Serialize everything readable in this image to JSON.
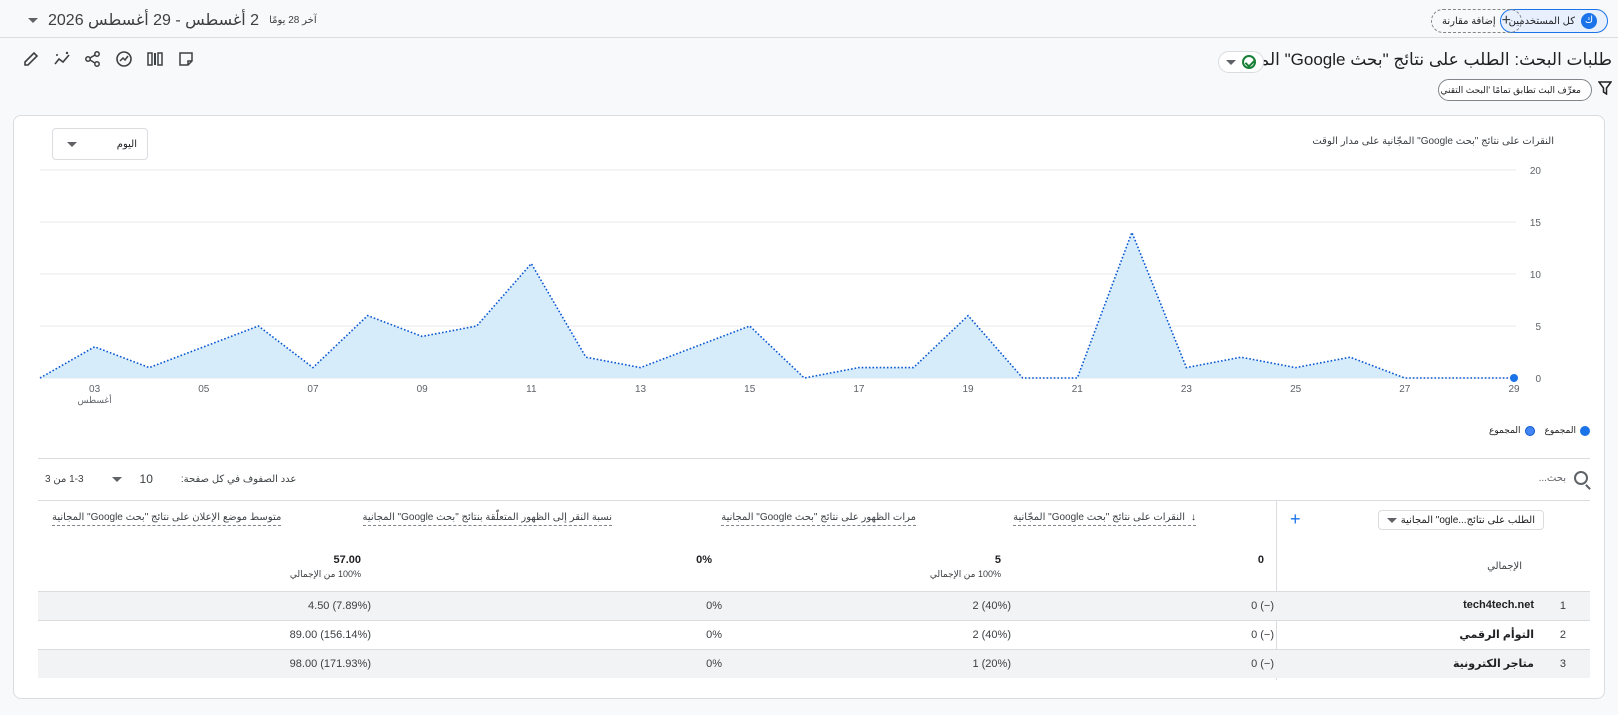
{
  "top": {
    "all_users": "كل المستخدمين",
    "avatar_letter": "ك",
    "add_comparison": "إضافة مقارنة",
    "date_range": "2 أغسطس - 29 أغسطس 2026",
    "date_sub": "آخر 28 يومًا"
  },
  "report": {
    "title": "طلبات البحث: الطلب على نتائج \"بحث Google\" المجانية",
    "filter_chip": "معرِّف البث تطابق تمامًا 'البحث التقني ال...'"
  },
  "chart_section": {
    "title": "النقرات على نتائج \"بحث Google\" المجّانية على مدار الوقت",
    "period": "اليوم"
  },
  "chart_data": {
    "type": "area",
    "y_ticks": [
      "0",
      "5",
      "10",
      "15",
      "20"
    ],
    "ylim": [
      0,
      20
    ],
    "x_tick_labels": [
      "03",
      "05",
      "07",
      "09",
      "11",
      "13",
      "15",
      "17",
      "19",
      "21",
      "23",
      "25",
      "27",
      "29"
    ],
    "x_sub_label": "أغسطس",
    "x_days": [
      2,
      3,
      4,
      5,
      6,
      7,
      8,
      9,
      10,
      11,
      12,
      13,
      14,
      15,
      16,
      17,
      18,
      19,
      20,
      21,
      22,
      23,
      24,
      25,
      26,
      27,
      28,
      29
    ],
    "series": [
      {
        "name": "المجموع",
        "values": [
          0,
          3,
          1,
          3,
          5,
          1,
          6,
          4,
          5,
          11,
          2,
          1,
          3,
          5,
          0,
          1,
          1,
          6,
          0,
          0,
          14,
          1,
          2,
          1,
          2,
          0,
          0,
          0
        ]
      }
    ],
    "grid": true
  },
  "legend": [
    "المجموع",
    "المجموع"
  ],
  "table": {
    "search_placeholder": "بحث...",
    "rows_per_page_label": "عدد الصفوف في كل صفحة:",
    "rows_per_page": "10",
    "range": "1-3 من 3",
    "dimension": "الطلب على نتائج...ogle\" المجانية",
    "headers": [
      "النقرات على نتائج \"بحث Google\" المجّانية",
      "مرات الظهور على نتائج \"بحث Google\" المجانية",
      "نسبة النقر إلى الظهور المتعلّقة بنتائج \"بحث Google\" المجانية",
      "متوسط موضع الإعلان على نتائج \"بحث Google\" المجانية"
    ],
    "total_label": "الإجمالي",
    "totals": [
      {
        "value": "0",
        "pct": ""
      },
      {
        "value": "5",
        "pct": "100% من الإجمالي"
      },
      {
        "value": "0%",
        "pct": ""
      },
      {
        "value": "57.00",
        "pct": "100% من الإجمالي"
      }
    ],
    "rows": [
      {
        "idx": "1",
        "name": "tech4tech.net",
        "clicks": "0 (−)",
        "impr": "2 (40%)",
        "ctr": "0%",
        "pos": "4.50 (7.89%)"
      },
      {
        "idx": "2",
        "name": "التوأم الرقمي",
        "clicks": "0 (−)",
        "impr": "2 (40%)",
        "ctr": "0%",
        "pos": "89.00 (156.14%)"
      },
      {
        "idx": "3",
        "name": "متاجر الكترونية",
        "clicks": "0 (−)",
        "impr": "1 (20%)",
        "ctr": "0%",
        "pos": "98.00 (171.93%)"
      }
    ]
  },
  "colors": {
    "accent": "#1a73e8",
    "area_fill": "#d6ecfb",
    "line": "#0b57d0"
  }
}
